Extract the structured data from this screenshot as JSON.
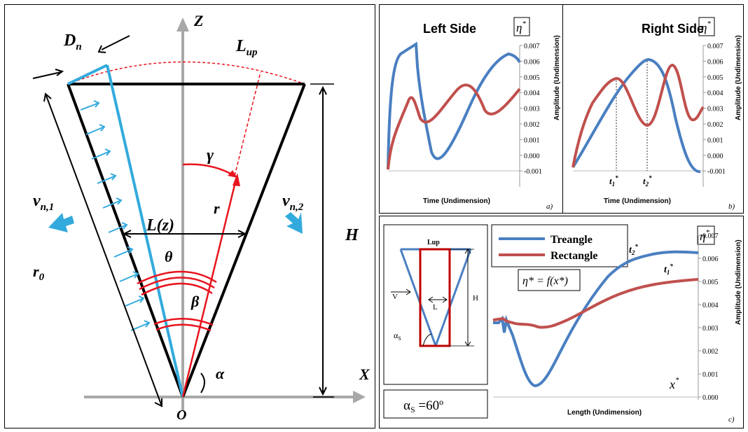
{
  "left_diagram": {
    "axis_z": "Z",
    "axis_x": "X",
    "origin": "O",
    "labels": {
      "Dn": "D",
      "Dn_sub": "n",
      "Lup": "L",
      "Lup_sub": "up",
      "gamma": "γ",
      "r": "r",
      "Lz": "L(z)",
      "theta": "θ",
      "beta": "β",
      "alpha": "α",
      "H": "H",
      "r0": "r",
      "r0_sub": "0",
      "vn1": "v",
      "vn1_sub": "n,1",
      "vn2": "v",
      "vn2_sub": "n,2"
    }
  },
  "chart_a": {
    "title": "Left Side",
    "eta_box": "η",
    "eta_sup": "*",
    "xlabel": "Time (Undimension)",
    "ylabel": "Amplitude (Undimension)",
    "panel_label": "a)",
    "ticks": [
      "0.007",
      "0.006",
      "0.005",
      "0.004",
      "0.003",
      "0.002",
      "0.001",
      "0.000",
      "-0.001"
    ]
  },
  "chart_b": {
    "title": "Right Side",
    "eta_box": "η",
    "eta_sup": "*",
    "xlabel": "Time (Undimension)",
    "ylabel": "Amplitude (Undimension)",
    "panel_label": "b)",
    "t1": "t",
    "t1_sub": "1",
    "t2": "t",
    "t2_sub": "2",
    "ticks": [
      "0.007",
      "0.006",
      "0.005",
      "0.004",
      "0.003",
      "0.002",
      "0.001",
      "0.000",
      "-0.001"
    ]
  },
  "inset": {
    "lup": "Lup",
    "v": "V",
    "l": "L",
    "h": "H",
    "alpha": "α",
    "alpha_sub": "S",
    "caption": "α",
    "caption_sub": "S",
    "caption_rest": " =60º"
  },
  "chart_c": {
    "legend": [
      "Treangle",
      "Rectangle"
    ],
    "eta_box": "η",
    "eta_sup": "*",
    "formula": "η* = f(x*)",
    "x_star": "x",
    "t2": "t",
    "t2_sub": "2",
    "t1": "t",
    "t1_sub": "1",
    "xlabel": "Length (Undimension)",
    "ylabel": "Amplitude (Undimension)",
    "panel_label": "c)",
    "ticks": [
      "0.007",
      "0.006",
      "0.005",
      "0.004",
      "0.003",
      "0.002",
      "0.001",
      "0.000"
    ]
  },
  "colors": {
    "blue": "#4a7fc1",
    "red": "#c0504d",
    "cyan": "#33aadd",
    "diag_red": "#e8141e"
  }
}
